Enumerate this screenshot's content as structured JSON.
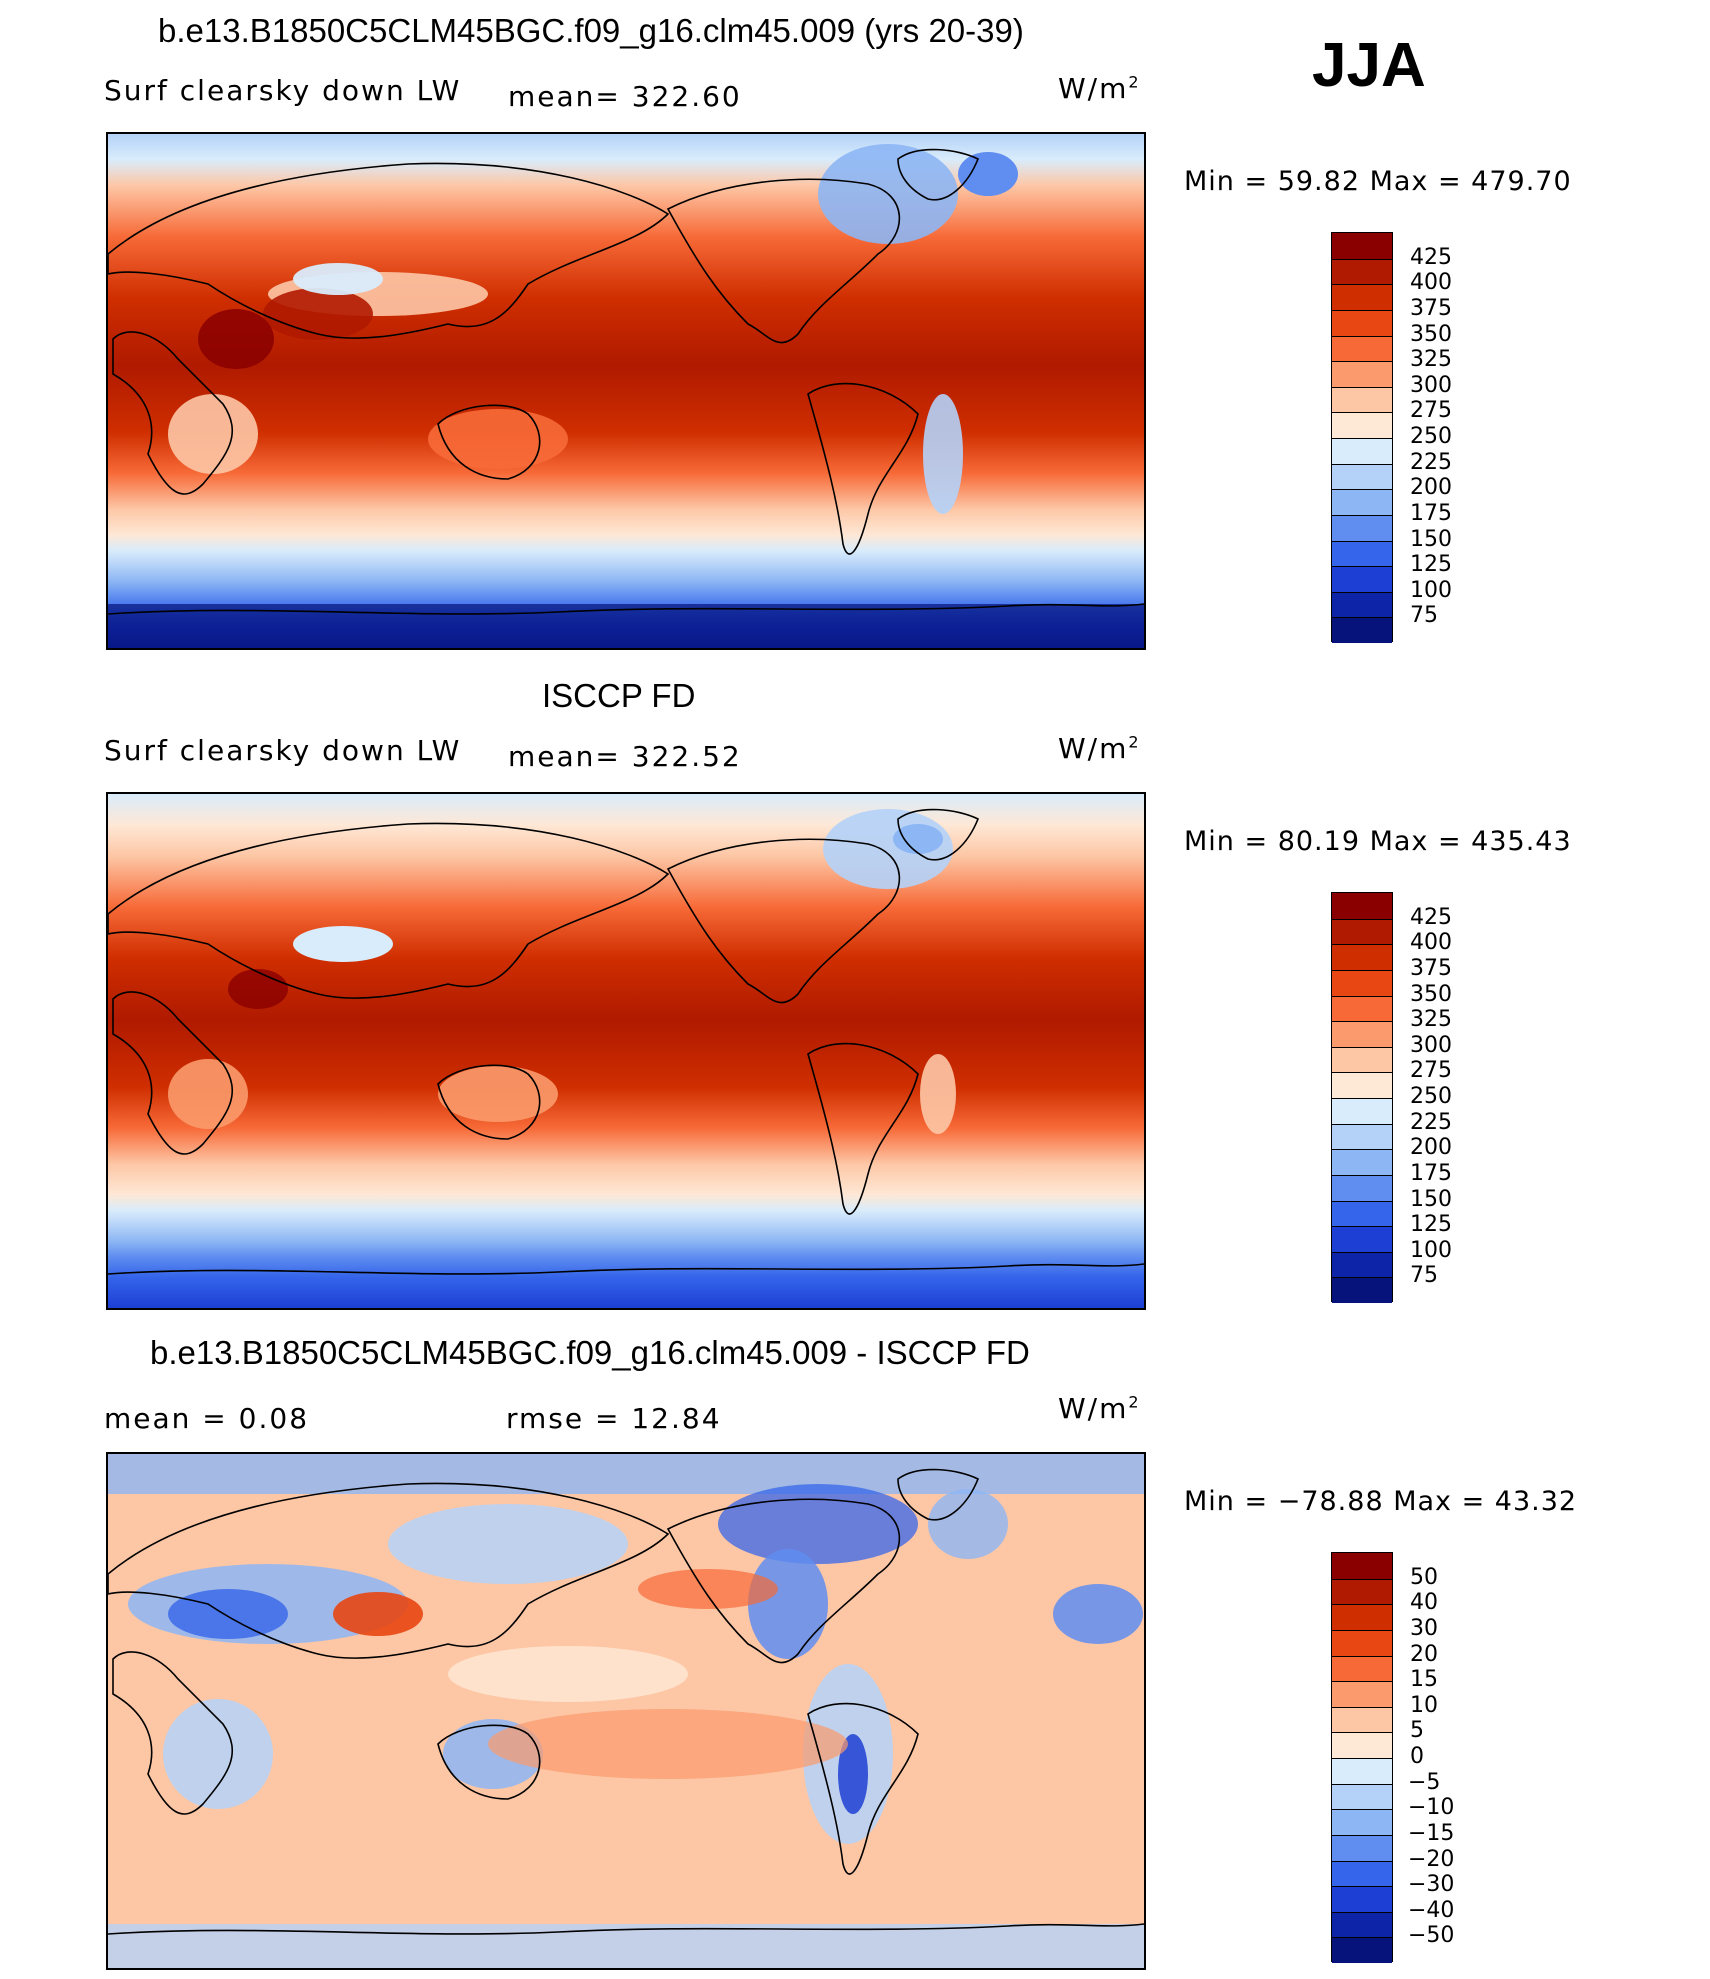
{
  "season": "JJA",
  "panels": [
    {
      "title": "b.e13.B1850C5CLM45BGC.f09_g16.clm45.009 (yrs 20-39)",
      "variable": "Surf clearsky down LW",
      "stat1": "mean= 322.60",
      "stat2": "",
      "units": "W/m",
      "units_sup": "2",
      "minmax": "Min =   59.82 Max = 479.70",
      "colorbar": {
        "labels": [
          "425",
          "400",
          "375",
          "350",
          "325",
          "300",
          "275",
          "250",
          "225",
          "200",
          "175",
          "150",
          "125",
          "100",
          "75"
        ],
        "colors": [
          "#8a0000",
          "#b01a00",
          "#cf2e00",
          "#e84612",
          "#f76a38",
          "#fb9a6c",
          "#fdc7a6",
          "#fee8d6",
          "#d9ecfb",
          "#b4d2f8",
          "#8db6f4",
          "#5f8df0",
          "#3565ea",
          "#1d3fd4",
          "#0d24a8",
          "#06137a"
        ]
      },
      "field": "absolute"
    },
    {
      "title": "ISCCP FD",
      "variable": "Surf clearsky down LW",
      "stat1": "mean= 322.52",
      "stat2": "",
      "units": "W/m",
      "units_sup": "2",
      "minmax": "Min =   80.19 Max = 435.43",
      "colorbar": {
        "labels": [
          "425",
          "400",
          "375",
          "350",
          "325",
          "300",
          "275",
          "250",
          "225",
          "200",
          "175",
          "150",
          "125",
          "100",
          "75"
        ],
        "colors": [
          "#8a0000",
          "#b01a00",
          "#cf2e00",
          "#e84612",
          "#f76a38",
          "#fb9a6c",
          "#fdc7a6",
          "#fee8d6",
          "#d9ecfb",
          "#b4d2f8",
          "#8db6f4",
          "#5f8df0",
          "#3565ea",
          "#1d3fd4",
          "#0d24a8",
          "#06137a"
        ]
      },
      "field": "absolute"
    },
    {
      "title": "b.e13.B1850C5CLM45BGC.f09_g16.clm45.009 - ISCCP FD",
      "variable": "",
      "stat1": "mean =     0.08",
      "stat2": "rmse =    12.84",
      "units": "W/m",
      "units_sup": "2",
      "minmax": "Min = −78.88 Max =   43.32",
      "colorbar": {
        "labels": [
          "50",
          "40",
          "30",
          "20",
          "15",
          "10",
          "5",
          "0",
          "−5",
          "−10",
          "−15",
          "−20",
          "−30",
          "−40",
          "−50"
        ],
        "colors": [
          "#8a0000",
          "#b01a00",
          "#cf2e00",
          "#e84612",
          "#f76a38",
          "#fb9a6c",
          "#fdc7a6",
          "#fee8d6",
          "#d9ecfb",
          "#b4d2f8",
          "#8db6f4",
          "#5f8df0",
          "#3565ea",
          "#1d3fd4",
          "#0d24a8",
          "#06137a"
        ]
      },
      "field": "difference"
    }
  ]
}
